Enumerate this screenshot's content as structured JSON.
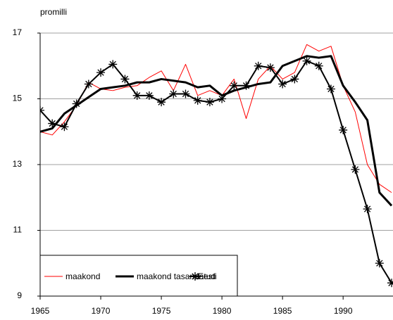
{
  "chart_data": {
    "type": "line",
    "y_label": "promilli",
    "x": [
      1965,
      1966,
      1967,
      1968,
      1969,
      1970,
      1971,
      1972,
      1973,
      1974,
      1975,
      1976,
      1977,
      1978,
      1979,
      1980,
      1981,
      1982,
      1983,
      1984,
      1985,
      1986,
      1987,
      1988,
      1989,
      1990,
      1991,
      1992,
      1993,
      1994
    ],
    "series": [
      {
        "name": "maakond",
        "color": "#ff0000",
        "width": 1,
        "marker": "none",
        "values": [
          14.0,
          13.9,
          14.3,
          14.8,
          15.5,
          15.3,
          15.25,
          15.35,
          15.4,
          15.65,
          15.85,
          15.25,
          16.05,
          15.1,
          15.25,
          15.1,
          15.6,
          14.4,
          15.6,
          16.0,
          15.6,
          15.8,
          16.65,
          16.45,
          16.6,
          15.4,
          14.6,
          13.0,
          12.4,
          12.15
        ]
      },
      {
        "name": "maakond tasandatud",
        "color": "#000000",
        "width": 3,
        "marker": "none",
        "values": [
          14.0,
          14.1,
          14.55,
          14.8,
          15.05,
          15.3,
          15.35,
          15.4,
          15.5,
          15.5,
          15.6,
          15.55,
          15.5,
          15.35,
          15.4,
          15.1,
          15.25,
          15.35,
          15.45,
          15.5,
          16.0,
          16.15,
          16.3,
          16.25,
          16.3,
          15.4,
          14.9,
          14.35,
          12.15,
          11.75
        ]
      },
      {
        "name": "Eesti",
        "color": "#000000",
        "width": 2,
        "marker": "star",
        "values": [
          14.65,
          14.25,
          14.15,
          14.85,
          15.45,
          15.8,
          16.05,
          15.6,
          15.1,
          15.1,
          14.9,
          15.15,
          15.15,
          14.95,
          14.9,
          15.0,
          15.4,
          15.4,
          16.0,
          15.95,
          15.45,
          15.6,
          16.15,
          16.0,
          15.3,
          14.05,
          12.85,
          11.65,
          10.0,
          9.4
        ]
      }
    ],
    "xlim": [
      1965,
      1994
    ],
    "xticks": [
      1965,
      1970,
      1975,
      1980,
      1985,
      1990
    ],
    "ylim": [
      9,
      17
    ],
    "yticks": [
      9,
      11,
      13,
      15,
      17
    ],
    "grid": true,
    "legend": "lower left"
  }
}
